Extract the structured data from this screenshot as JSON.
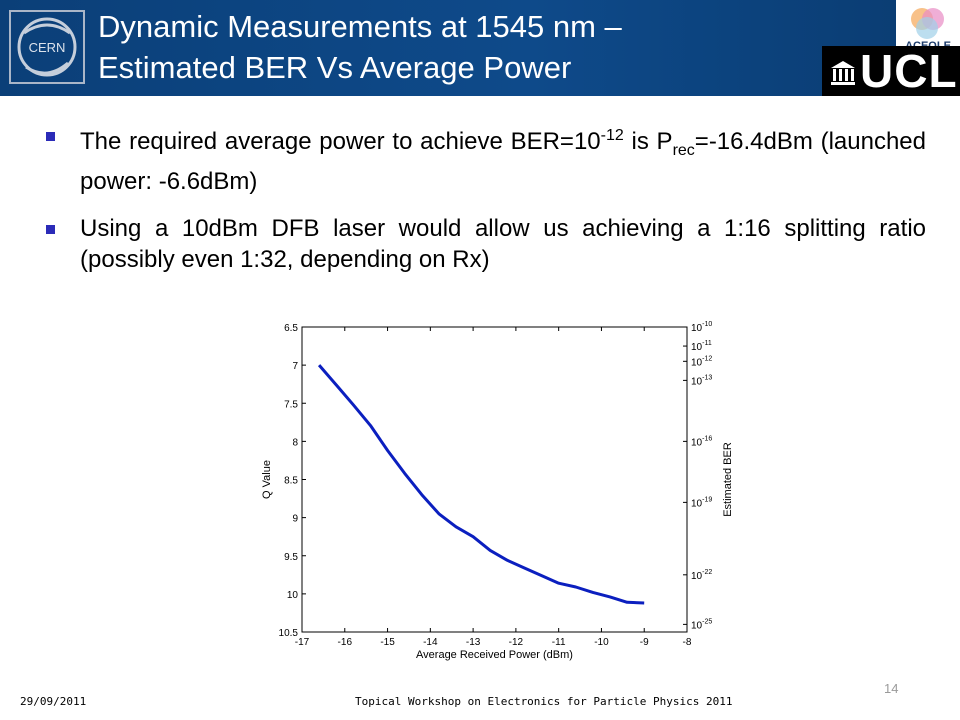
{
  "slide": {
    "title_line1": "Dynamic Measurements at 1545 nm –",
    "title_line2": "Estimated BER Vs Average Power",
    "logos": {
      "cern": "CERN",
      "aceole": "ACEOLE",
      "ucl": "UCL"
    },
    "bullets": [
      {
        "pre": "The required average power to achieve BER=10",
        "sup": "-12",
        "mid": " is P",
        "sub": "rec",
        "post": "=-16.4dBm (launched power: -6.6dBm)"
      },
      {
        "text": "Using a 10dBm DFB laser would allow us achieving a 1:16 splitting ratio (possibly even 1:32, depending on Rx)"
      }
    ],
    "footer": {
      "date": "29/09/2011",
      "event": "Topical Workshop on Electronics for Particle Physics 2011",
      "page": "14"
    },
    "colors": {
      "header_bg": "#0e4a8a",
      "bullet_marker": "#2b2bb8",
      "curve": "#0b1fbf"
    }
  },
  "chart_data": {
    "type": "line",
    "xlabel": "Average Received Power (dBm)",
    "ylabel": "Q Value",
    "y2label": "Estimated BER",
    "xlim": [
      -17,
      -8
    ],
    "ylim": [
      6.5,
      10.5
    ],
    "y_inverted": true,
    "x_ticks": [
      "-17",
      "-16",
      "-15",
      "-14",
      "-13",
      "-12",
      "-11",
      "-10",
      "-9",
      "-8"
    ],
    "y_ticks": [
      "6.5",
      "7",
      "7.5",
      "8",
      "8.5",
      "9",
      "9.5",
      "10",
      "10.5"
    ],
    "y2_ticks": [
      {
        "q": 6.5,
        "exp": "-10"
      },
      {
        "q": 6.75,
        "exp": "-11"
      },
      {
        "q": 6.95,
        "exp": "-12"
      },
      {
        "q": 7.2,
        "exp": "-13"
      },
      {
        "q": 8.0,
        "exp": "-16"
      },
      {
        "q": 8.8,
        "exp": "-19"
      },
      {
        "q": 9.75,
        "exp": "-22"
      },
      {
        "q": 10.4,
        "exp": "-25"
      }
    ],
    "x": [
      -16.6,
      -16.2,
      -15.8,
      -15.4,
      -15.0,
      -14.6,
      -14.2,
      -13.8,
      -13.4,
      -13.0,
      -12.6,
      -12.2,
      -11.8,
      -11.4,
      -11.0,
      -10.6,
      -10.2,
      -9.8,
      -9.4,
      -9.0
    ],
    "y": [
      7.0,
      7.26,
      7.52,
      7.79,
      8.12,
      8.42,
      8.7,
      8.95,
      9.12,
      9.25,
      9.43,
      9.56,
      9.66,
      9.76,
      9.86,
      9.91,
      9.98,
      10.04,
      10.11,
      10.12
    ]
  }
}
